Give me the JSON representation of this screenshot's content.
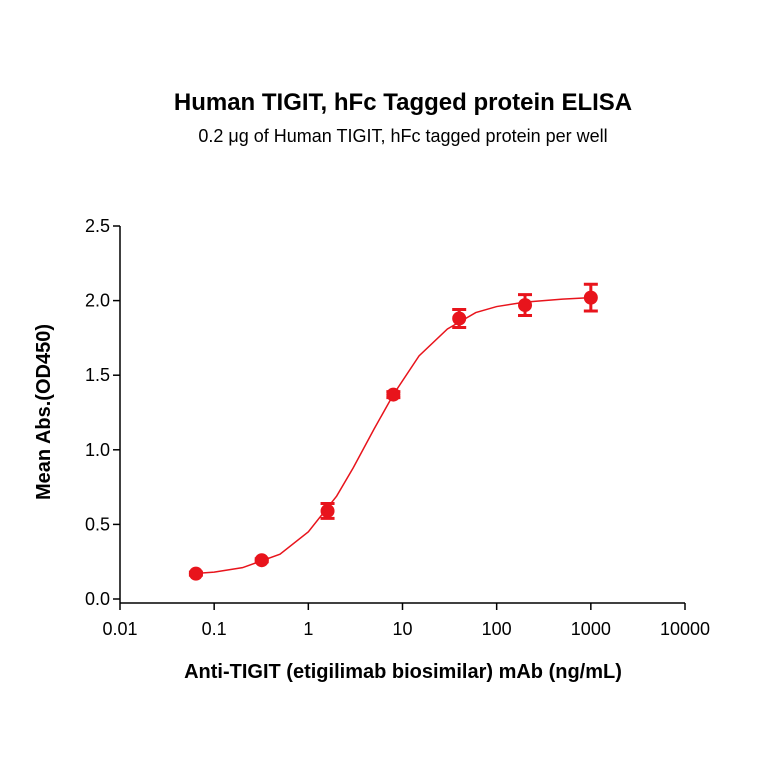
{
  "chart_data": {
    "type": "scatter",
    "title": "Human TIGIT, hFc Tagged protein ELISA",
    "subtitle": "0.2 μg of Human TIGIT, hFc tagged protein per well",
    "xlabel": "Anti-TIGIT (etigilimab biosimilar) mAb (ng/mL)",
    "ylabel": "Mean Abs.(OD450)",
    "xscale": "log",
    "xlim": [
      0.01,
      10000
    ],
    "xticks": [
      0.01,
      0.1,
      1,
      10,
      100,
      1000,
      10000
    ],
    "ylim": [
      0,
      2.5
    ],
    "yticks": [
      {
        "value": 0,
        "label": "0.0"
      },
      0.5,
      {
        "value": 1,
        "label": "1.0"
      },
      1.5,
      {
        "value": 2,
        "label": "2.0"
      },
      2.5
    ],
    "series": [
      {
        "color": "#e8141c",
        "mode": "markers",
        "x": [
          0.064,
          0.32,
          1.6,
          8,
          40,
          200,
          1000
        ],
        "values": [
          0.17,
          0.26,
          0.59,
          1.37,
          1.88,
          1.97,
          2.02
        ],
        "errors": [
          0.01,
          0.01,
          0.05,
          0.02,
          0.06,
          0.07,
          0.09
        ]
      },
      {
        "color": "#e8141c",
        "mode": "line",
        "x": [
          0.06,
          0.1,
          0.2,
          0.5,
          1,
          2,
          3,
          5,
          8,
          15,
          30,
          60,
          100,
          200,
          500,
          1000
        ],
        "values": [
          0.17,
          0.18,
          0.21,
          0.3,
          0.45,
          0.69,
          0.88,
          1.14,
          1.37,
          1.63,
          1.81,
          1.92,
          1.96,
          1.99,
          2.01,
          2.02
        ]
      }
    ]
  }
}
